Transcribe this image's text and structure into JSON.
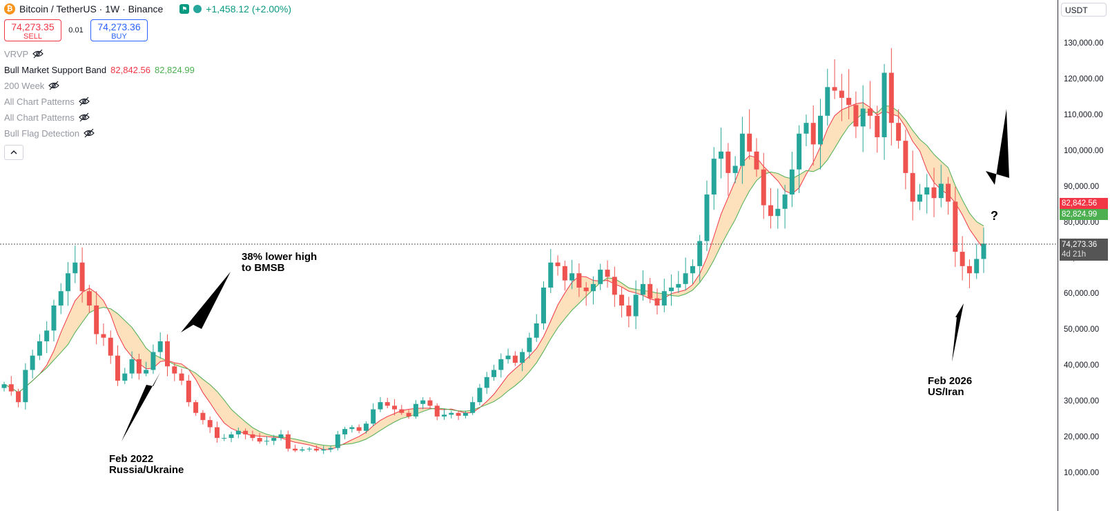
{
  "legend": {
    "symbol": "Bitcoin / TetherUS · 1W · Binance",
    "change": "+1,458.12 (+2.00%)",
    "sell_price": "74,273.35",
    "sell_label": "SELL",
    "spread": "0.01",
    "buy_price": "74,273.36",
    "buy_label": "BUY",
    "indicators": [
      {
        "name": "VRVP"
      },
      {
        "name": "Bull Market Support Band",
        "v1": "82,842.56",
        "v2": "82,824.99"
      },
      {
        "name": "200 Week"
      },
      {
        "name": "All Chart Patterns"
      },
      {
        "name": "All Chart Patterns"
      },
      {
        "name": "Bull Flag Detection"
      }
    ]
  },
  "price_axis": {
    "currency": "USDT",
    "ticks": [
      "130,000.00",
      "120,000.00",
      "110,000.00",
      "100,000.00",
      "90,000.00",
      "80,000.00",
      "70,000.00",
      "60,000.00",
      "50,000.00",
      "40,000.00",
      "30,000.00",
      "20,000.00",
      "10,000.00"
    ],
    "bmsb_upper": "82,842.56",
    "bmsb_lower": "82,824.99",
    "last_price": "74,273.36",
    "countdown": "4d 21h"
  },
  "annotations": {
    "lower_high_1": "38% lower high",
    "lower_high_2": "to BMSB",
    "feb2022_1": "Feb 2022",
    "feb2022_2": "Russia/Ukraine",
    "feb2026_1": "Feb 2026",
    "feb2026_2": "US/Iran",
    "question": "?"
  },
  "colors": {
    "up": "#26a69a",
    "down": "#ef5350",
    "band_fill": "#fbd9ab",
    "band_upper": "#f23645",
    "band_lower": "#4caf50"
  },
  "chart_data": {
    "type": "candlestick",
    "timeframe": "1W",
    "ylim": [
      5000,
      135000
    ],
    "closes": [
      35000,
      33000,
      30000,
      39000,
      43000,
      47000,
      50000,
      57000,
      61000,
      66000,
      69000,
      61000,
      57000,
      49000,
      48000,
      43000,
      36000,
      38000,
      42000,
      38000,
      39000,
      44000,
      47000,
      40000,
      38000,
      36000,
      30000,
      27000,
      25000,
      23000,
      20000,
      20000,
      21000,
      22000,
      21000,
      20000,
      19000,
      19200,
      20000,
      21000,
      17000,
      16500,
      16800,
      17000,
      16500,
      16800,
      17200,
      21000,
      22500,
      23000,
      22000,
      24000,
      28000,
      30000,
      29000,
      28000,
      27000,
      26000,
      29500,
      30500,
      29000,
      26000,
      26500,
      27000,
      26200,
      27000,
      30000,
      34000,
      37000,
      39000,
      42000,
      43000,
      41000,
      44000,
      48000,
      52000,
      62000,
      69000,
      68000,
      64000,
      66000,
      62000,
      61000,
      63000,
      67000,
      65000,
      60000,
      57000,
      54000,
      60000,
      63000,
      59000,
      57000,
      61000,
      62000,
      63000,
      66000,
      68000,
      75000,
      88000,
      98000,
      100000,
      94000,
      96000,
      105000,
      100000,
      95000,
      85000,
      82000,
      84000,
      88000,
      95000,
      105000,
      108000,
      102000,
      110000,
      118000,
      117000,
      115000,
      113000,
      107000,
      112000,
      110000,
      104000,
      122000,
      108000,
      103000,
      94000,
      86000,
      88000,
      90000,
      87000,
      91000,
      86000,
      72000,
      68000,
      66000,
      70000,
      74273
    ]
  }
}
